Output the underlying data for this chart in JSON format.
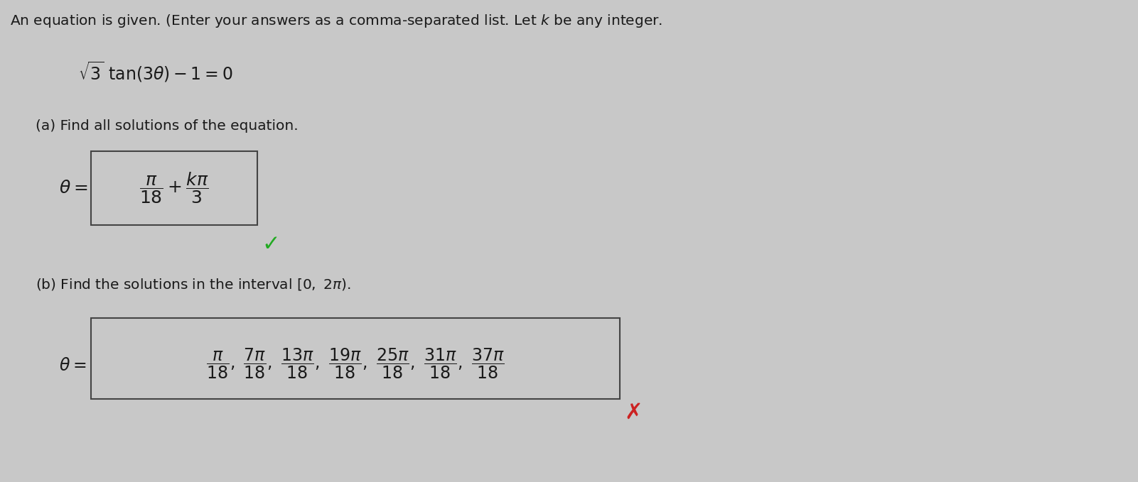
{
  "bg_color": "#c8c8c8",
  "text_color": "#1a1a1a",
  "checkmark_color": "#22aa22",
  "xmark_color": "#cc2222",
  "box_color": "#c8c8c8",
  "box_edge_color": "#444444",
  "figsize": [
    16.01,
    6.79
  ],
  "dpi": 100,
  "header_fontsize": 14.5,
  "equation_fontsize": 17,
  "label_fontsize": 14.5,
  "answer_fontsize": 18,
  "answer_b_fontsize": 17
}
